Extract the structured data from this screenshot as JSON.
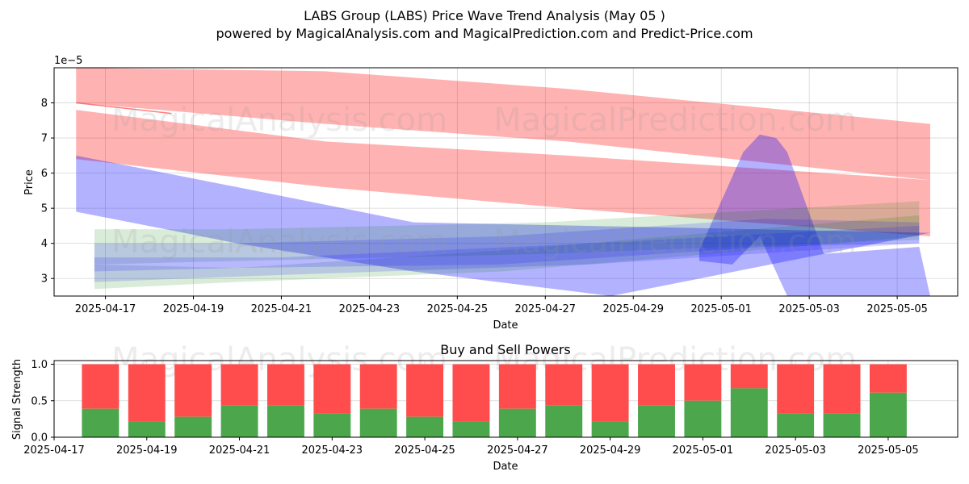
{
  "title": "LABS Group (LABS) Price Wave Trend Analysis (May 05 )",
  "subtitle": "powered by MagicalAnalysis.com and MagicalPrediction.com and Predict-Price.com",
  "watermarks": [
    "MagicalAnalysis.com",
    "MagicalPrediction.com"
  ],
  "chart_data": [
    {
      "type": "area",
      "xlabel": "Date",
      "ylabel": "Price",
      "offset_label": "1e−5",
      "xlim": [
        "2025-04-15T20:00",
        "2025-05-06T09:00"
      ],
      "ylim": [
        2.5,
        9.0
      ],
      "yticks": [
        3,
        4,
        5,
        6,
        7,
        8
      ],
      "xticks": [
        "2025-04-17",
        "2025-04-19",
        "2025-04-21",
        "2025-04-23",
        "2025-04-25",
        "2025-04-27",
        "2025-04-29",
        "2025-05-01",
        "2025-05-03",
        "2025-05-05"
      ],
      "grid": true,
      "colors": {
        "red": "#ff0000",
        "blue": "#0000ff",
        "green": "#008000"
      },
      "bands": [
        {
          "color": "red",
          "opacity": 0.3,
          "upper": [
            [
              "2025-04-16T08:00",
              9.0
            ],
            [
              "2025-04-22T00:00",
              8.9
            ],
            [
              "2025-04-27T12:00",
              8.4
            ],
            [
              "2025-05-05T18:00",
              7.4
            ]
          ],
          "lower": [
            [
              "2025-04-16T08:00",
              8.0
            ],
            [
              "2025-04-22T00:00",
              7.4
            ],
            [
              "2025-04-27T12:00",
              6.9
            ],
            [
              "2025-05-05T18:00",
              5.8
            ]
          ]
        },
        {
          "color": "red",
          "opacity": 0.3,
          "upper": [
            [
              "2025-04-16T08:00",
              7.8
            ],
            [
              "2025-04-22T00:00",
              6.9
            ],
            [
              "2025-04-27T12:00",
              6.5
            ],
            [
              "2025-05-05T18:00",
              5.8
            ]
          ],
          "lower": [
            [
              "2025-04-16T08:00",
              6.4
            ],
            [
              "2025-04-22T00:00",
              5.6
            ],
            [
              "2025-04-27T12:00",
              5.0
            ],
            [
              "2025-05-05T18:00",
              4.2
            ]
          ]
        },
        {
          "color": "blue",
          "opacity": 0.3,
          "upper": [
            [
              "2025-04-16T08:00",
              6.5
            ],
            [
              "2025-04-20T00:00",
              5.6
            ],
            [
              "2025-04-24T00:00",
              4.6
            ],
            [
              "2025-05-05T18:00",
              4.3
            ]
          ],
          "lower": [
            [
              "2025-04-16T08:00",
              4.9
            ],
            [
              "2025-04-20T00:00",
              4.0
            ],
            [
              "2025-04-24T00:00",
              3.2
            ],
            [
              "2025-04-28T12:00",
              2.5
            ]
          ]
        },
        {
          "color": "blue",
          "opacity": 0.3,
          "upper": [
            [
              "2025-04-30T12:00",
              3.8
            ],
            [
              "2025-05-01T12:00",
              6.6
            ],
            [
              "2025-05-01T21:00",
              7.1
            ],
            [
              "2025-05-02T06:00",
              7.0
            ],
            [
              "2025-05-02T12:00",
              6.6
            ],
            [
              "2025-05-03T08:00",
              3.7
            ],
            [
              "2025-05-05T12:00",
              3.9
            ]
          ],
          "lower": [
            [
              "2025-04-30T12:00",
              3.5
            ],
            [
              "2025-05-01T06:00",
              3.4
            ],
            [
              "2025-05-01T21:00",
              4.2
            ],
            [
              "2025-05-02T12:00",
              2.5
            ],
            [
              "2025-05-05T18:00",
              2.5
            ]
          ]
        },
        {
          "color": "green",
          "opacity": 0.15,
          "upper": [
            [
              "2025-04-16T18:00",
              4.4
            ],
            [
              "2025-04-20T00:00",
              4.4
            ],
            [
              "2025-04-27T00:00",
              4.6
            ],
            [
              "2025-05-05T12:00",
              5.2
            ]
          ],
          "lower": [
            [
              "2025-04-16T18:00",
              3.4
            ],
            [
              "2025-04-20T00:00",
              3.5
            ],
            [
              "2025-04-27T00:00",
              3.7
            ],
            [
              "2025-05-05T12:00",
              4.1
            ]
          ]
        },
        {
          "color": "green",
          "opacity": 0.15,
          "upper": [
            [
              "2025-04-16T18:00",
              3.4
            ],
            [
              "2025-04-20T00:00",
              3.3
            ],
            [
              "2025-04-26T00:00",
              3.8
            ],
            [
              "2025-05-05T12:00",
              4.8
            ]
          ],
          "lower": [
            [
              "2025-04-16T18:00",
              2.7
            ],
            [
              "2025-04-20T00:00",
              2.9
            ],
            [
              "2025-04-26T00:00",
              3.2
            ],
            [
              "2025-05-05T12:00",
              4.2
            ]
          ]
        },
        {
          "color": "blue",
          "opacity": 0.15,
          "upper": [
            [
              "2025-04-16T18:00",
              4.0
            ],
            [
              "2025-04-20T00:00",
              4.0
            ],
            [
              "2025-04-26T00:00",
              4.2
            ],
            [
              "2025-05-02T00:00",
              4.7
            ],
            [
              "2025-05-05T12:00",
              4.6
            ]
          ],
          "lower": [
            [
              "2025-04-16T18:00",
              3.2
            ],
            [
              "2025-04-20T00:00",
              3.3
            ],
            [
              "2025-04-26T00:00",
              3.4
            ],
            [
              "2025-05-02T00:00",
              3.9
            ],
            [
              "2025-05-05T12:00",
              4.0
            ]
          ]
        },
        {
          "color": "blue",
          "opacity": 0.15,
          "upper": [
            [
              "2025-04-16T18:00",
              3.6
            ],
            [
              "2025-04-21T00:00",
              3.6
            ],
            [
              "2025-04-28T00:00",
              4.0
            ],
            [
              "2025-05-05T12:00",
              4.5
            ]
          ],
          "lower": [
            [
              "2025-04-16T18:00",
              2.9
            ],
            [
              "2025-04-21T00:00",
              3.1
            ],
            [
              "2025-04-28T00:00",
              3.4
            ],
            [
              "2025-05-05T12:00",
              4.0
            ]
          ]
        }
      ],
      "line": [
        [
          "2025-04-16T08:00",
          8.0
        ],
        [
          "2025-04-18T12:00",
          7.7
        ]
      ]
    },
    {
      "type": "bar",
      "title": "Buy and Sell Powers",
      "xlabel": "Date",
      "ylabel": "Signal Strength",
      "xlim": [
        "2025-04-17T00:00",
        "2025-05-06T12:00"
      ],
      "ylim": [
        0.0,
        1.05
      ],
      "yticks": [
        "0.0",
        "0.5",
        "1.0"
      ],
      "xticks": [
        "2025-04-17",
        "2025-04-19",
        "2025-04-21",
        "2025-04-23",
        "2025-04-25",
        "2025-04-27",
        "2025-04-29",
        "2025-05-01",
        "2025-05-03",
        "2025-05-05"
      ],
      "grid": true,
      "colors": {
        "buy": "#4ca64c",
        "sell": "#ff4c4c"
      },
      "categories": [
        "2025-04-18",
        "2025-04-19",
        "2025-04-20",
        "2025-04-21",
        "2025-04-22",
        "2025-04-23",
        "2025-04-24",
        "2025-04-25",
        "2025-04-26",
        "2025-04-27",
        "2025-04-28",
        "2025-04-29",
        "2025-04-30",
        "2025-05-01",
        "2025-05-02",
        "2025-05-03",
        "2025-05-04",
        "2025-05-05"
      ],
      "buy": [
        0.39,
        0.22,
        0.28,
        0.44,
        0.44,
        0.33,
        0.39,
        0.28,
        0.22,
        0.39,
        0.44,
        0.22,
        0.44,
        0.5,
        0.67,
        0.33,
        0.33,
        0.61
      ]
    }
  ]
}
